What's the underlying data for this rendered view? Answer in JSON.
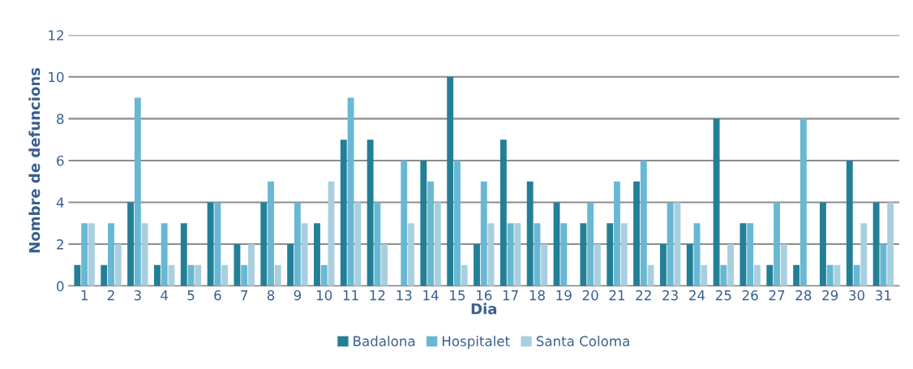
{
  "chart_data": {
    "type": "bar",
    "xlabel": "Dia",
    "ylabel": "Nombre de defuncions",
    "categories": [
      "1",
      "2",
      "3",
      "4",
      "5",
      "6",
      "7",
      "8",
      "9",
      "10",
      "11",
      "12",
      "13",
      "14",
      "15",
      "16",
      "17",
      "18",
      "19",
      "20",
      "21",
      "22",
      "23",
      "24",
      "25",
      "26",
      "27",
      "28",
      "29",
      "30",
      "31"
    ],
    "series": [
      {
        "name": "Badalona",
        "color": "#237f96",
        "values": [
          1,
          1,
          4,
          1,
          3,
          4,
          2,
          4,
          2,
          3,
          7,
          7,
          0,
          6,
          10,
          2,
          7,
          5,
          4,
          3,
          3,
          5,
          2,
          2,
          8,
          3,
          1,
          1,
          4,
          6,
          4
        ]
      },
      {
        "name": "Hospitalet",
        "color": "#68b8d4",
        "values": [
          3,
          3,
          9,
          3,
          1,
          4,
          1,
          5,
          4,
          1,
          9,
          4,
          6,
          5,
          6,
          5,
          3,
          3,
          3,
          4,
          5,
          6,
          4,
          3,
          1,
          3,
          4,
          8,
          1,
          1,
          2
        ]
      },
      {
        "name": "Santa Coloma",
        "color": "#a9cfdf",
        "values": [
          3,
          2,
          3,
          1,
          1,
          1,
          2,
          1,
          3,
          5,
          4,
          2,
          3,
          4,
          1,
          3,
          3,
          2,
          0,
          2,
          3,
          1,
          4,
          1,
          2,
          1,
          2,
          0,
          1,
          3,
          4
        ]
      }
    ],
    "ylim": [
      0,
      12
    ],
    "yticks": [
      0,
      2,
      4,
      6,
      8,
      10,
      12
    ],
    "grid": "y",
    "legend": "bottom"
  }
}
